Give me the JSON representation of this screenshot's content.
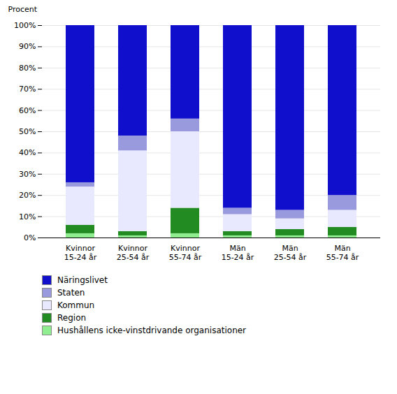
{
  "chart_data": {
    "type": "bar",
    "stacked": true,
    "y_label": "Procent",
    "categories": [
      "Kvinnor\n15-24 år",
      "Kvinnor\n25-54 år",
      "Kvinnor\n55-74 år",
      "Män\n15-24 år",
      "Män\n25-54 år",
      "Män\n55-74 år"
    ],
    "series": [
      {
        "name": "Hushållens icke-vinstdrivande organisationer",
        "values": [
          2,
          1,
          2,
          1,
          1,
          1
        ],
        "color": "#90EE90"
      },
      {
        "name": "Region",
        "values": [
          4,
          2,
          12,
          2,
          3,
          4
        ],
        "color": "#228B22"
      },
      {
        "name": "Kommun",
        "values": [
          18,
          38,
          36,
          8,
          5,
          8
        ],
        "color": "#E8E8FF"
      },
      {
        "name": "Staten",
        "values": [
          2,
          7,
          6,
          3,
          4,
          7
        ],
        "color": "#9999DD"
      },
      {
        "name": "Näringslivet",
        "values": [
          74,
          52,
          44,
          86,
          87,
          80
        ],
        "color": "#1010CC"
      }
    ],
    "ylim": [
      0,
      100
    ],
    "yticks": [
      {
        "value": 0,
        "label": "0%"
      },
      {
        "value": 10,
        "label": "10%"
      },
      {
        "value": 20,
        "label": "20%"
      },
      {
        "value": 30,
        "label": "30%"
      },
      {
        "value": 40,
        "label": "40%"
      },
      {
        "value": 50,
        "label": "50%"
      },
      {
        "value": 60,
        "label": "60%"
      },
      {
        "value": 70,
        "label": "70%"
      },
      {
        "value": 80,
        "label": "80%"
      },
      {
        "value": 90,
        "label": "90%"
      },
      {
        "value": 100,
        "label": "100%"
      }
    ],
    "grid": true,
    "legend": "bottom"
  }
}
